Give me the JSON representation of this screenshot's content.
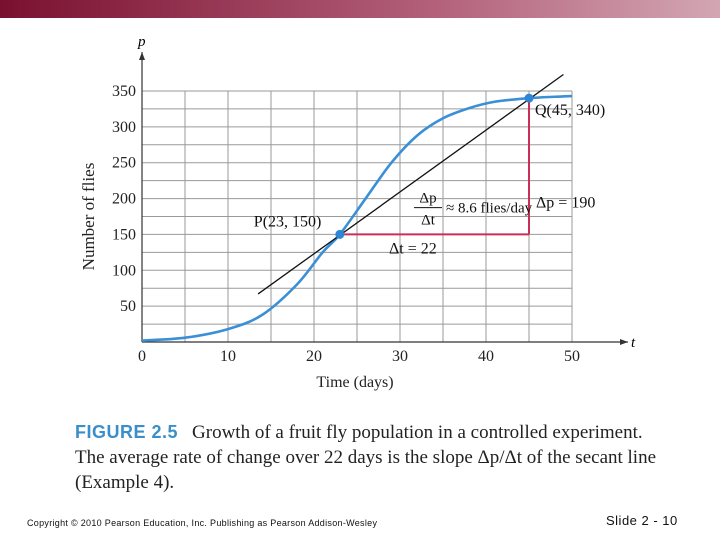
{
  "chart_data": {
    "type": "line",
    "axis_x_name": "t",
    "axis_y_name": "p",
    "xlabel": "Time (days)",
    "ylabel": "Number  of flies",
    "xlim": [
      0,
      50
    ],
    "ylim": [
      0,
      350
    ],
    "x_ticks": [
      0,
      10,
      20,
      30,
      40,
      50
    ],
    "y_ticks": [
      50,
      100,
      150,
      200,
      250,
      300,
      350
    ],
    "grid": true,
    "series": [
      {
        "color": "#3a8fd6",
        "x": [
          0,
          5,
          10,
          14,
          18,
          21,
          23,
          26,
          29,
          32,
          35,
          38,
          41,
          45,
          48,
          50
        ],
        "y": [
          2,
          6,
          18,
          38,
          80,
          125,
          150,
          200,
          250,
          288,
          312,
          326,
          335,
          340,
          342,
          343
        ]
      }
    ],
    "secant_line": {
      "color": "#111111",
      "x": [
        13.5,
        49
      ],
      "y": [
        67,
        373
      ]
    },
    "points": [
      {
        "x": 23,
        "y": 150,
        "label": "P(23, 150)"
      },
      {
        "x": 45,
        "y": 340,
        "label": "Q(45, 340)"
      }
    ],
    "rise_run": {
      "color": "#c8305a",
      "run_label": "Δt = 22",
      "rise_label": "Δp = 190"
    },
    "slope_annotation": {
      "numerator": "Δp",
      "denominator": "Δt",
      "text": "≈ 8.6 flies/day"
    }
  },
  "caption": {
    "figure_label": "FIGURE 2.5",
    "text": "Growth of a fruit fly population in a controlled experiment. The average rate of change over 22 days is the slope Δp/Δt of the secant line (Example 4)."
  },
  "footer": {
    "copyright": "Copyright © 2010 Pearson Education, Inc.  Publishing as Pearson Addison-Wesley",
    "slide_number": "Slide 2 - 10"
  },
  "colors": {
    "top_bar_start": "#7a1030",
    "top_bar_end": "#d2a6b2",
    "figure_label": "#3a8fc9"
  }
}
